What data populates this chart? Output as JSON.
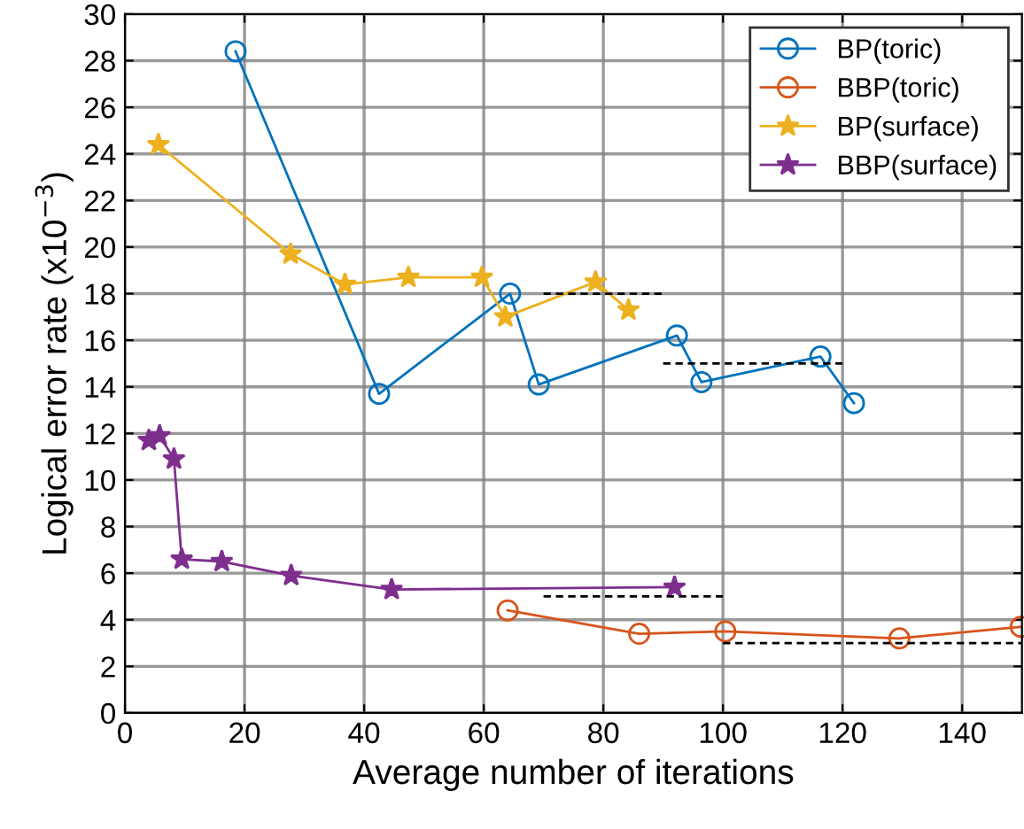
{
  "chart_data": {
    "type": "line",
    "xlabel": "Average number of iterations",
    "ylabel": "Logical error rate (x10$^{−3}$)",
    "xlim": [
      0,
      150
    ],
    "ylim": [
      0,
      30
    ],
    "xticks": [
      0,
      20,
      40,
      60,
      80,
      100,
      120,
      140
    ],
    "yticks": [
      0,
      2,
      4,
      6,
      8,
      10,
      12,
      14,
      16,
      18,
      20,
      22,
      24,
      26,
      28,
      30
    ],
    "grid": true,
    "legend": "top right",
    "series": [
      {
        "name": "BP(toric)",
        "color": "#0072bd",
        "marker": "circle",
        "x": [
          18.5,
          42.5,
          64.4,
          69.2,
          92.3,
          96.4,
          116.3,
          121.9
        ],
        "values": [
          28.4,
          13.7,
          18.0,
          14.1,
          16.2,
          14.2,
          15.3,
          13.3
        ]
      },
      {
        "name": "BBP(toric)",
        "color": "#d95319",
        "marker": "circle",
        "x": [
          64.0,
          86.0,
          100.4,
          129.5,
          149.8
        ],
        "values": [
          4.4,
          3.4,
          3.5,
          3.2,
          3.7
        ]
      },
      {
        "name": "BP(surface)",
        "color": "#edb120",
        "marker": "star",
        "x": [
          5.6,
          27.7,
          36.8,
          47.4,
          59.7,
          63.6,
          78.7,
          84.2
        ],
        "values": [
          24.4,
          19.7,
          18.4,
          18.7,
          18.7,
          17.0,
          18.5,
          17.3
        ]
      },
      {
        "name": "BBP(surface)",
        "color": "#7e2f8e",
        "marker": "star",
        "x": [
          4.0,
          5.8,
          8.2,
          9.5,
          16.2,
          27.8,
          44.6,
          91.9
        ],
        "values": [
          11.7,
          11.9,
          10.9,
          6.6,
          6.5,
          5.9,
          5.3,
          5.4
        ]
      },
      {
        "color": "#000000",
        "marker": "none",
        "line_style": "dashed",
        "x": [
          70,
          90
        ],
        "values": [
          18,
          18
        ]
      },
      {
        "color": "#000000",
        "marker": "none",
        "line_style": "dashed",
        "x": [
          90,
          120
        ],
        "values": [
          15,
          15
        ]
      },
      {
        "color": "#000000",
        "marker": "none",
        "line_style": "dashed",
        "x": [
          70,
          100
        ],
        "values": [
          5,
          5
        ]
      },
      {
        "color": "#000000",
        "marker": "none",
        "line_style": "dashed",
        "x": [
          100,
          150
        ],
        "values": [
          3,
          3
        ]
      }
    ]
  }
}
